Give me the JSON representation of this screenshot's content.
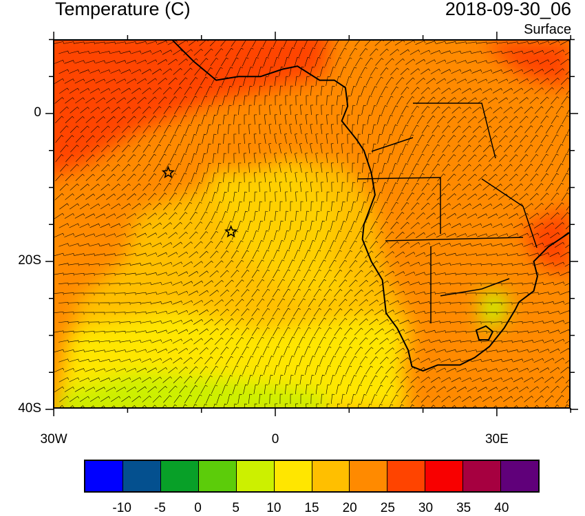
{
  "header": {
    "title": "Temperature (C)",
    "valid_time": "2018-09-30_06",
    "level": "Surface"
  },
  "axes": {
    "lon_ticks": [
      {
        "value": -30,
        "label": "30W"
      },
      {
        "value": 0,
        "label": "0"
      },
      {
        "value": 30,
        "label": "30E"
      }
    ],
    "lat_ticks": [
      {
        "value": 0,
        "label": "0"
      },
      {
        "value": -20,
        "label": "20S"
      },
      {
        "value": -40,
        "label": "40S"
      }
    ],
    "lon_range": [
      -30,
      40
    ],
    "lat_range": [
      -40,
      10
    ]
  },
  "markers": [
    {
      "name": "star",
      "lon": -14.5,
      "lat": -8
    },
    {
      "name": "star",
      "lon": -6,
      "lat": -16
    }
  ],
  "colorbar": {
    "colors": [
      "#0000ff",
      "#04508f",
      "#08a028",
      "#5ccc0a",
      "#ccf000",
      "#ffe600",
      "#ffbf00",
      "#ff8a00",
      "#ff4400",
      "#f80000",
      "#a60040",
      "#60007a"
    ],
    "labels": [
      "-10",
      "-5",
      "0",
      "5",
      "10",
      "15",
      "20",
      "25",
      "30",
      "35",
      "40"
    ]
  }
}
